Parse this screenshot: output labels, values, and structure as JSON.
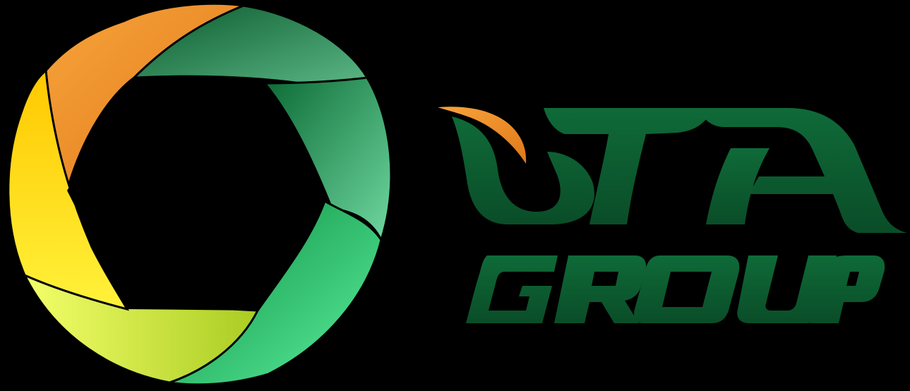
{
  "logo": {
    "wordmark_top": "VTA",
    "wordmark_bottom": "GROUP"
  },
  "colors": {
    "background": "#000000",
    "green_dark": "#0e5a31",
    "green_mid": "#1b8a45",
    "green_light": "#4fd08c",
    "orange": "#ef8a22",
    "orange_light": "#f7a43b",
    "yellow": "#ffd200",
    "yellow_green": "#c6e23a"
  }
}
